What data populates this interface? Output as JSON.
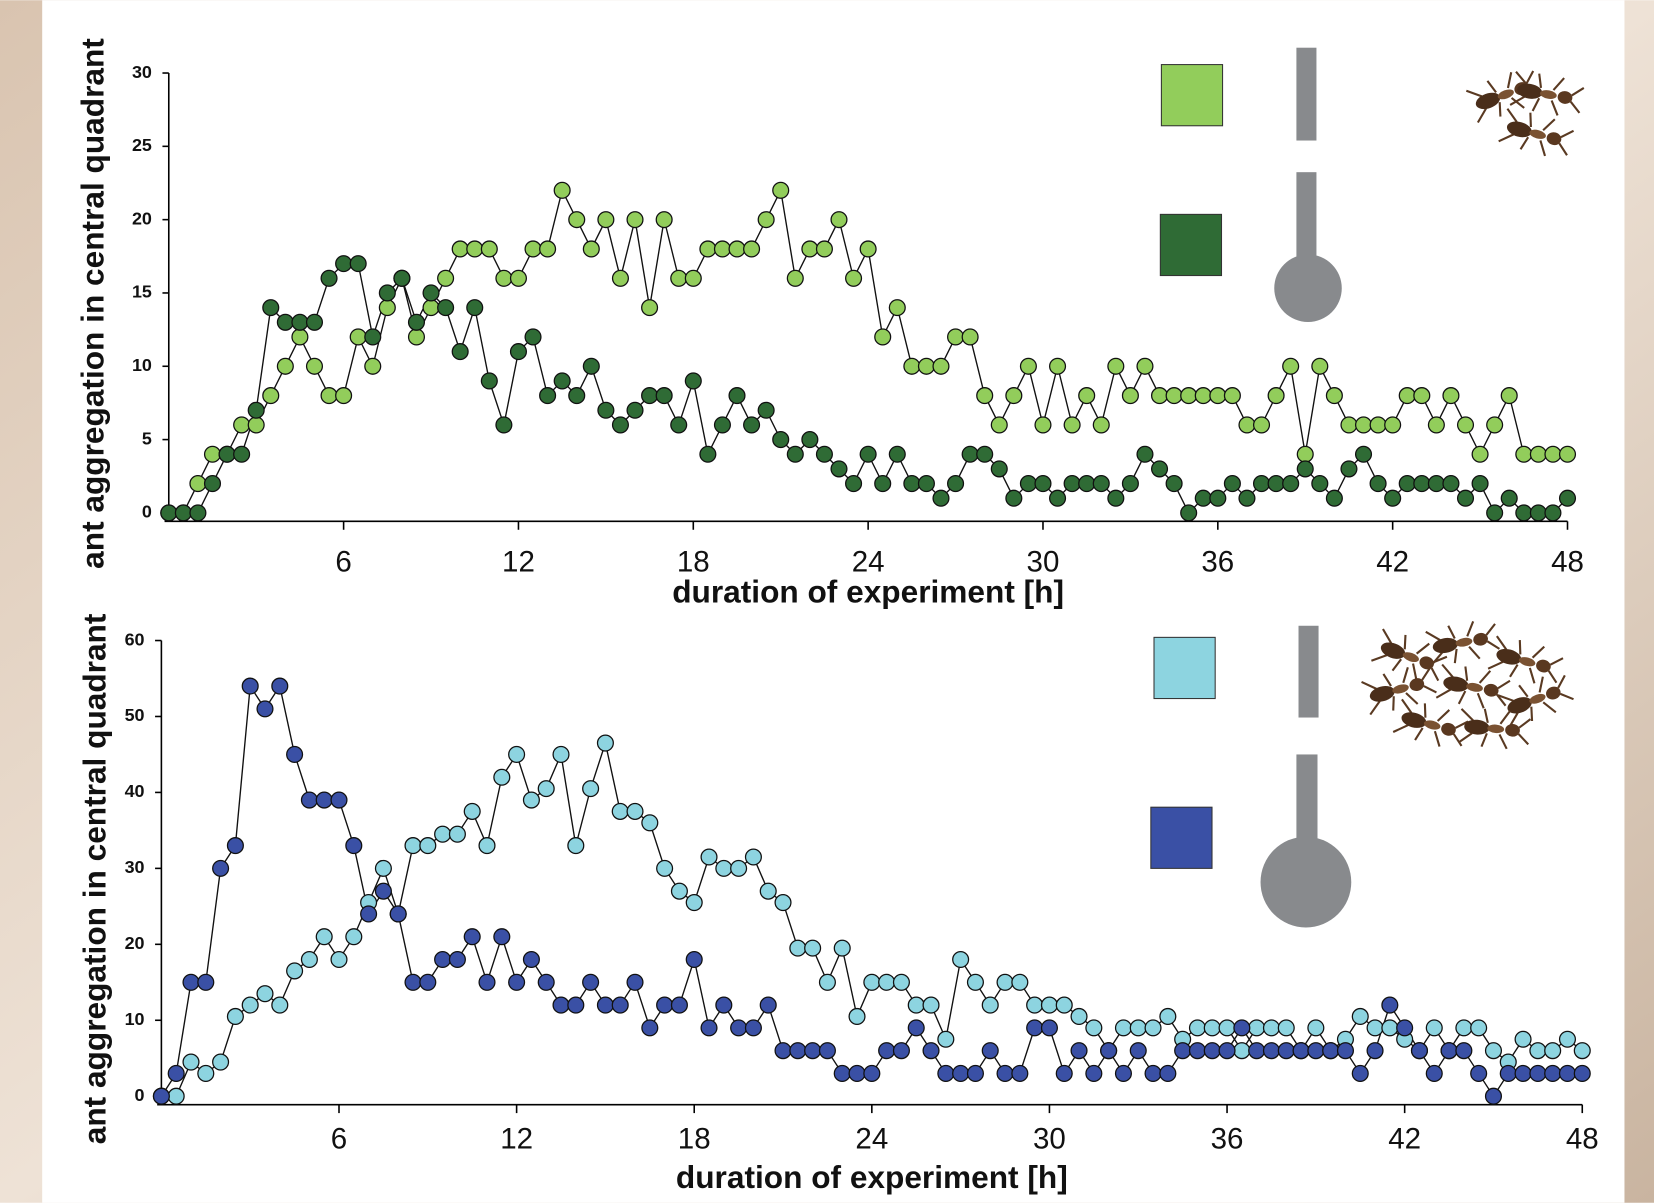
{
  "chart_data": [
    {
      "type": "line",
      "x_label": "duration of experiment [h]",
      "y_label": "ant aggregation in central quadrant",
      "x": [
        0,
        0.5,
        1,
        1.5,
        2,
        2.5,
        3,
        3.5,
        4,
        4.5,
        5,
        5.5,
        6,
        6.5,
        7,
        7.5,
        8,
        8.5,
        9,
        9.5,
        10,
        10.5,
        11,
        11.5,
        12,
        12.5,
        13,
        13.5,
        14,
        14.5,
        15,
        15.5,
        16,
        16.5,
        17,
        17.5,
        18,
        18.5,
        19,
        19.5,
        20,
        20.5,
        21,
        21.5,
        22,
        22.5,
        23,
        23.5,
        24,
        24.5,
        25,
        25.5,
        26,
        26.5,
        27,
        27.5,
        28,
        28.5,
        29,
        29.5,
        30,
        30.5,
        31,
        31.5,
        32,
        32.5,
        33,
        33.5,
        34,
        34.5,
        35,
        35.5,
        36,
        36.5,
        37,
        37.5,
        38,
        38.5,
        39,
        39.5,
        40,
        40.5,
        41,
        41.5,
        42,
        42.5,
        43,
        43.5,
        44,
        44.5,
        45,
        45.5,
        46,
        46.5,
        47,
        47.5,
        48
      ],
      "xlim": [
        0,
        48
      ],
      "xticks": [
        6,
        12,
        18,
        24,
        30,
        36,
        42,
        48
      ],
      "ylim": [
        0,
        30
      ],
      "yticks": [
        0,
        5,
        10,
        15,
        20,
        25,
        30
      ],
      "series": [
        {
          "color": "#92cd5b",
          "values": [
            0,
            0,
            2,
            4,
            4,
            6,
            6,
            8,
            10,
            12,
            10,
            8,
            8,
            12,
            10,
            14,
            16,
            12,
            14,
            16,
            18,
            18,
            18,
            16,
            16,
            18,
            18,
            22,
            20,
            18,
            20,
            16,
            20,
            14,
            20,
            16,
            16,
            18,
            18,
            18,
            18,
            20,
            22,
            16,
            18,
            18,
            20,
            16,
            18,
            12,
            14,
            10,
            10,
            10,
            12,
            12,
            8,
            6,
            8,
            10,
            6,
            10,
            6,
            8,
            6,
            10,
            8,
            10,
            8,
            8,
            8,
            8,
            8,
            8,
            6,
            6,
            8,
            10,
            4,
            10,
            8,
            6,
            6,
            6,
            6,
            8,
            8,
            6,
            8,
            6,
            4,
            6,
            8,
            4,
            4,
            4,
            4
          ]
        },
        {
          "color": "#2f6b35",
          "values": [
            0,
            0,
            0,
            2,
            4,
            4,
            7,
            14,
            13,
            13,
            13,
            16,
            17,
            17,
            12,
            15,
            16,
            13,
            15,
            14,
            11,
            14,
            9,
            6,
            11,
            12,
            8,
            9,
            8,
            10,
            7,
            6,
            7,
            8,
            8,
            6,
            9,
            4,
            6,
            8,
            6,
            7,
            5,
            4,
            5,
            4,
            3,
            2,
            4,
            2,
            4,
            2,
            2,
            1,
            2,
            4,
            4,
            3,
            1,
            2,
            2,
            1,
            2,
            2,
            2,
            1,
            2,
            4,
            3,
            2,
            0,
            1,
            1,
            2,
            1,
            2,
            2,
            2,
            3,
            2,
            1,
            3,
            4,
            2,
            1,
            2,
            2,
            2,
            2,
            1,
            2,
            0,
            1,
            0,
            0,
            0,
            1
          ]
        }
      ]
    },
    {
      "type": "line",
      "x_label": "duration of experiment [h]",
      "y_label": "ant aggregation in central quadrant",
      "x": [
        0,
        0.5,
        1,
        1.5,
        2,
        2.5,
        3,
        3.5,
        4,
        4.5,
        5,
        5.5,
        6,
        6.5,
        7,
        7.5,
        8,
        8.5,
        9,
        9.5,
        10,
        10.5,
        11,
        11.5,
        12,
        12.5,
        13,
        13.5,
        14,
        14.5,
        15,
        15.5,
        16,
        16.5,
        17,
        17.5,
        18,
        18.5,
        19,
        19.5,
        20,
        20.5,
        21,
        21.5,
        22,
        22.5,
        23,
        23.5,
        24,
        24.5,
        25,
        25.5,
        26,
        26.5,
        27,
        27.5,
        28,
        28.5,
        29,
        29.5,
        30,
        30.5,
        31,
        31.5,
        32,
        32.5,
        33,
        33.5,
        34,
        34.5,
        35,
        35.5,
        36,
        36.5,
        37,
        37.5,
        38,
        38.5,
        39,
        39.5,
        40,
        40.5,
        41,
        41.5,
        42,
        42.5,
        43,
        43.5,
        44,
        44.5,
        45,
        45.5,
        46,
        46.5,
        47,
        47.5,
        48
      ],
      "xlim": [
        0,
        48
      ],
      "xticks": [
        6,
        12,
        18,
        24,
        30,
        36,
        42,
        48
      ],
      "ylim": [
        0,
        60
      ],
      "yticks": [
        0,
        10,
        20,
        30,
        40,
        50,
        60
      ],
      "series": [
        {
          "color": "#8dd4e0",
          "values": [
            0,
            0,
            4.5,
            3,
            4.5,
            10.5,
            12,
            13.5,
            12,
            16.5,
            18,
            21,
            18,
            21,
            25.5,
            30,
            24,
            33,
            33,
            34.5,
            34.5,
            37.5,
            33,
            42,
            45,
            39,
            40.5,
            45,
            33,
            40.5,
            46.5,
            37.5,
            37.5,
            36,
            30,
            27,
            25.5,
            31.5,
            30,
            30,
            31.5,
            27,
            25.5,
            19.5,
            19.5,
            15,
            19.5,
            10.5,
            15,
            15,
            15,
            12,
            12,
            7.5,
            18,
            15,
            12,
            15,
            15,
            12,
            12,
            12,
            10.5,
            9,
            6,
            9,
            9,
            9,
            10.5,
            7.5,
            9,
            9,
            9,
            6,
            9,
            9,
            9,
            6,
            9,
            6,
            7.5,
            10.5,
            9,
            9,
            7.5,
            6,
            9,
            6,
            9,
            9,
            6,
            4.5,
            7.5,
            6,
            6,
            7.5,
            6
          ]
        },
        {
          "color": "#3a50a5",
          "values": [
            0,
            3,
            15,
            15,
            30,
            33,
            54,
            51,
            54,
            45,
            39,
            39,
            39,
            33,
            24,
            27,
            24,
            15,
            15,
            18,
            18,
            21,
            15,
            21,
            15,
            18,
            15,
            12,
            12,
            15,
            12,
            12,
            15,
            9,
            12,
            12,
            18,
            9,
            12,
            9,
            9,
            12,
            6,
            6,
            6,
            6,
            3,
            3,
            3,
            6,
            6,
            9,
            6,
            3,
            3,
            3,
            6,
            3,
            3,
            9,
            9,
            3,
            6,
            3,
            6,
            3,
            6,
            3,
            3,
            6,
            6,
            6,
            6,
            9,
            6,
            6,
            6,
            6,
            6,
            6,
            6,
            3,
            6,
            12,
            9,
            6,
            3,
            6,
            6,
            3,
            0,
            3,
            3,
            3,
            3,
            3,
            3
          ]
        }
      ]
    }
  ]
}
